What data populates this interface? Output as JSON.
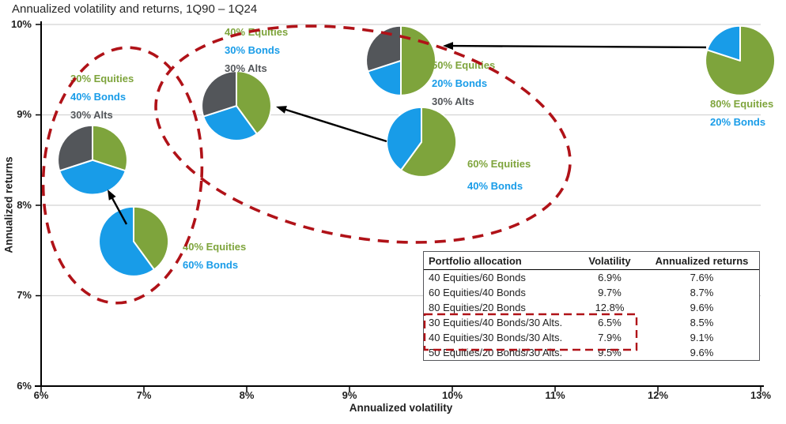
{
  "colors": {
    "equities": "#7EA43C",
    "bonds": "#189CE8",
    "alts": "#53565A",
    "highlight": "#B01218",
    "grid": "#D4D4D4",
    "axis": "#000000"
  },
  "chart_data": {
    "type": "scatter",
    "marker": "pie",
    "title": "Annualized volatility and returns, 1Q90 – 1Q24",
    "xlabel": "Annualized volatility",
    "ylabel": "Annualized returns",
    "xlim": [
      6,
      13
    ],
    "ylim": [
      6,
      10
    ],
    "x_ticks": [
      "6%",
      "7%",
      "8%",
      "9%",
      "10%",
      "11%",
      "12%",
      "13%"
    ],
    "y_ticks": [
      "10%",
      "9%",
      "8%",
      "7%",
      "6%"
    ],
    "grid": "horizontal",
    "points": [
      {
        "id": "40-60",
        "volatility": 6.9,
        "returns": 7.6,
        "allocation": {
          "equities": 40,
          "bonds": 60
        },
        "label_lines": [
          "40% Equities",
          "60% Bonds"
        ]
      },
      {
        "id": "60-40",
        "volatility": 9.7,
        "returns": 8.7,
        "allocation": {
          "equities": 60,
          "bonds": 40
        },
        "label_lines": [
          "60% Equities",
          "40% Bonds"
        ]
      },
      {
        "id": "80-20",
        "volatility": 12.8,
        "returns": 9.6,
        "allocation": {
          "equities": 80,
          "bonds": 20
        },
        "label_lines": [
          "80% Equities",
          "20% Bonds"
        ]
      },
      {
        "id": "30-40-30",
        "volatility": 6.5,
        "returns": 8.5,
        "allocation": {
          "equities": 30,
          "bonds": 40,
          "alts": 30
        },
        "label_lines": [
          "30% Equities",
          "40% Bonds",
          "30% Alts"
        ]
      },
      {
        "id": "40-30-30",
        "volatility": 7.9,
        "returns": 9.1,
        "allocation": {
          "equities": 40,
          "bonds": 30,
          "alts": 30
        },
        "label_lines": [
          "40% Equities",
          "30% Bonds",
          "30% Alts"
        ]
      },
      {
        "id": "50-20-30",
        "volatility": 9.5,
        "returns": 9.6,
        "allocation": {
          "equities": 50,
          "bonds": 20,
          "alts": 30
        },
        "label_lines": [
          "50% Equities",
          "20% Bonds",
          "30% Alts"
        ]
      }
    ],
    "annotations": {
      "arrow_pairs": [
        [
          "80-20",
          "50-20-30"
        ],
        [
          "60-40",
          "40-30-30"
        ],
        [
          "40-60",
          "30-40-30"
        ]
      ],
      "circled_groups": [
        [
          "30-40-30",
          "40-60"
        ],
        [
          "40-30-30",
          "50-20-30",
          "60-40"
        ]
      ]
    }
  },
  "table": {
    "headers": [
      "Portfolio allocation",
      "Volatility",
      "Annualized returns"
    ],
    "rows": [
      [
        "40 Equities/60 Bonds",
        "6.9%",
        "7.6%"
      ],
      [
        "60 Equities/40 Bonds",
        "9.7%",
        "8.7%"
      ],
      [
        "80 Equities/20 Bonds",
        "12.8%",
        "9.6%"
      ],
      [
        "30 Equities/40 Bonds/30 Alts.",
        "6.5%",
        "8.5%"
      ],
      [
        "40 Equities/30 Bonds/30 Alts.",
        "7.9%",
        "9.1%"
      ],
      [
        "50 Equities/20 Bonds/30 Alts.",
        "9.5%",
        "9.6%"
      ]
    ],
    "highlighted_rows": [
      3,
      4
    ]
  }
}
